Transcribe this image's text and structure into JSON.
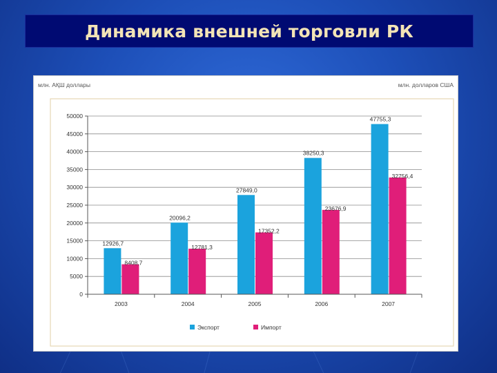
{
  "slide": {
    "title": "Динамика внешней торговли РК"
  },
  "colors": {
    "background": "#1d4fb8",
    "title_bar": "#000a72",
    "title_text": "#f3e4b6",
    "export": "#1ba3dd",
    "import": "#e01e79"
  },
  "chart_data": {
    "type": "bar",
    "ylabel_left": "млн. АҚШ доллары",
    "ylabel_right": "млн. долларов США",
    "categories": [
      "2003",
      "2004",
      "2005",
      "2006",
      "2007"
    ],
    "series": [
      {
        "name": "Экспорт",
        "color": "#1ba3dd",
        "values": [
          12926.7,
          20096.2,
          27849.0,
          38250.3,
          47755.3
        ],
        "labels": [
          "12926,7",
          "20096,2",
          "27849,0",
          "38250,3",
          "47755,3"
        ]
      },
      {
        "name": "Импорт",
        "color": "#e01e79",
        "values": [
          8408.7,
          12781.3,
          17352.2,
          23676.9,
          32756.4
        ],
        "labels": [
          "8408,7",
          "12781,3",
          "17352,2",
          "23676,9",
          "32756,4"
        ]
      }
    ],
    "ylim": [
      0,
      50000
    ],
    "yticks": [
      0,
      5000,
      10000,
      15000,
      20000,
      25000,
      30000,
      35000,
      40000,
      45000,
      50000
    ],
    "grid": true,
    "legend_position": "bottom"
  }
}
